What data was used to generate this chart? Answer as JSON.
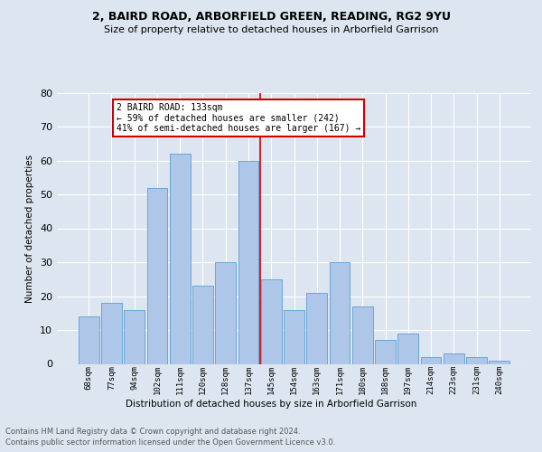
{
  "title1": "2, BAIRD ROAD, ARBORFIELD GREEN, READING, RG2 9YU",
  "title2": "Size of property relative to detached houses in Arborfield Garrison",
  "xlabel": "Distribution of detached houses by size in Arborfield Garrison",
  "ylabel": "Number of detached properties",
  "footer1": "Contains HM Land Registry data © Crown copyright and database right 2024.",
  "footer2": "Contains public sector information licensed under the Open Government Licence v3.0.",
  "annotation_line1": "2 BAIRD ROAD: 133sqm",
  "annotation_line2": "← 59% of detached houses are smaller (242)",
  "annotation_line3": "41% of semi-detached houses are larger (167) →",
  "bar_values": [
    14,
    18,
    16,
    52,
    62,
    23,
    30,
    60,
    25,
    16,
    21,
    30,
    17,
    7,
    9,
    2,
    3,
    2,
    1
  ],
  "bar_labels": [
    "68sqm",
    "77sqm",
    "94sqm",
    "102sqm",
    "111sqm",
    "120sqm",
    "128sqm",
    "137sqm",
    "145sqm",
    "154sqm",
    "163sqm",
    "171sqm",
    "180sqm",
    "188sqm",
    "197sqm",
    "214sqm",
    "223sqm",
    "231sqm",
    "240sqm"
  ],
  "bar_color": "#aec6e8",
  "bar_edge_color": "#5a9fd4",
  "vline_x": 7.5,
  "vline_color": "#cc0000",
  "annotation_box_color": "#cc0000",
  "ylim": [
    0,
    80
  ],
  "yticks": [
    0,
    10,
    20,
    30,
    40,
    50,
    60,
    70,
    80
  ],
  "background_color": "#dde6f0",
  "plot_background": "#dde6f0",
  "grid_color": "#ffffff"
}
